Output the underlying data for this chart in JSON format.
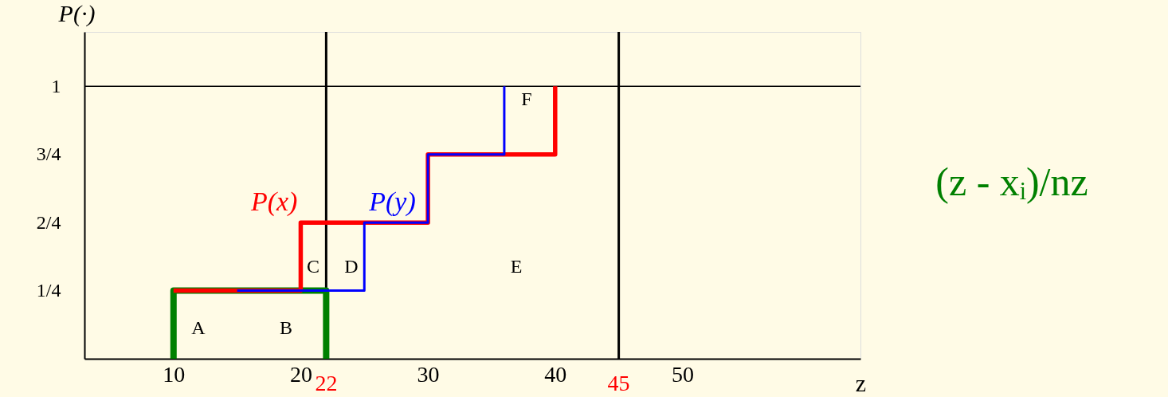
{
  "chart_data": {
    "type": "step",
    "xlabel": "z",
    "ylabel": "P(·)",
    "xlim": [
      3,
      64
    ],
    "ylim": [
      0,
      1.2
    ],
    "xticks": [
      10,
      20,
      30,
      40,
      50
    ],
    "yticks": [
      {
        "value": 0.25,
        "label": "1/4"
      },
      {
        "value": 0.5,
        "label": "2/4"
      },
      {
        "value": 0.75,
        "label": "3/4"
      },
      1
    ],
    "grid": false,
    "legend": false,
    "marker": "none",
    "line_style": "solid",
    "series": [
      {
        "name": "P(x)",
        "color": "#ff0000",
        "x": [
          10,
          20,
          30,
          40
        ],
        "values": [
          0.25,
          0.5,
          0.75,
          1
        ]
      },
      {
        "name": "P(y)",
        "color": "#0000ff",
        "x": [
          15,
          25,
          30,
          36
        ],
        "values": [
          0.25,
          0.5,
          0.75,
          1
        ]
      },
      {
        "type": "line",
        "color": "#008000",
        "x": [
          10,
          10,
          22,
          22
        ],
        "values": [
          0,
          0.25,
          0.25,
          0
        ]
      }
    ],
    "ref_lines": [
      {
        "axis": "x",
        "value": 22,
        "label": "22",
        "color": "#000000"
      },
      {
        "axis": "x",
        "value": 45,
        "label": "45",
        "color": "#000000"
      },
      {
        "axis": "y",
        "value": 1,
        "color": "#000000"
      }
    ],
    "annotations": [
      "A",
      "B",
      "C",
      "D",
      "E",
      "F",
      "(z - xᵢ)/nz"
    ]
  }
}
